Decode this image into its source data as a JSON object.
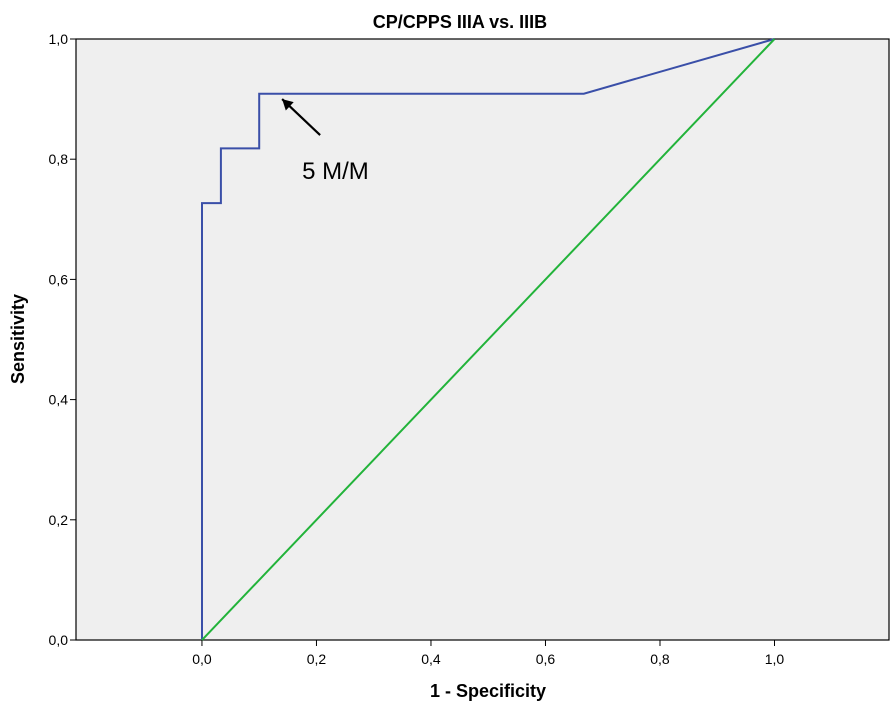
{
  "chart_data": {
    "type": "line",
    "title": "CP/CPPS IIIA vs. IIIB",
    "xlabel": "1 - Specificity",
    "ylabel": "Sensitivity",
    "xlim": [
      -0.22,
      1.2
    ],
    "ylim": [
      0,
      1
    ],
    "x_ticks": [
      0,
      0.2,
      0.4,
      0.6,
      0.8,
      1.0
    ],
    "x_tick_labels": [
      "0,0",
      "0,2",
      "0,4",
      "0,6",
      "0,8",
      "1,0"
    ],
    "y_ticks": [
      0,
      0.2,
      0.4,
      0.6,
      0.8,
      1.0
    ],
    "y_tick_labels": [
      "0,0",
      "0,2",
      "0,4",
      "0,6",
      "0,8",
      "1,0"
    ],
    "grid": false,
    "background": "#efefef",
    "series": [
      {
        "color": "#3a4fa8",
        "x": [
          0,
          0,
          0.033,
          0.033,
          0.1,
          0.1,
          0.667,
          1.0
        ],
        "y": [
          0,
          0.727,
          0.727,
          0.818,
          0.818,
          0.909,
          0.909,
          1.0
        ]
      },
      {
        "color": "#22b33a",
        "x": [
          0,
          1
        ],
        "y": [
          0,
          1
        ]
      }
    ],
    "annotations": [
      {
        "text": "5 M/M",
        "arrow_to": [
          0.14,
          0.9
        ]
      }
    ]
  }
}
